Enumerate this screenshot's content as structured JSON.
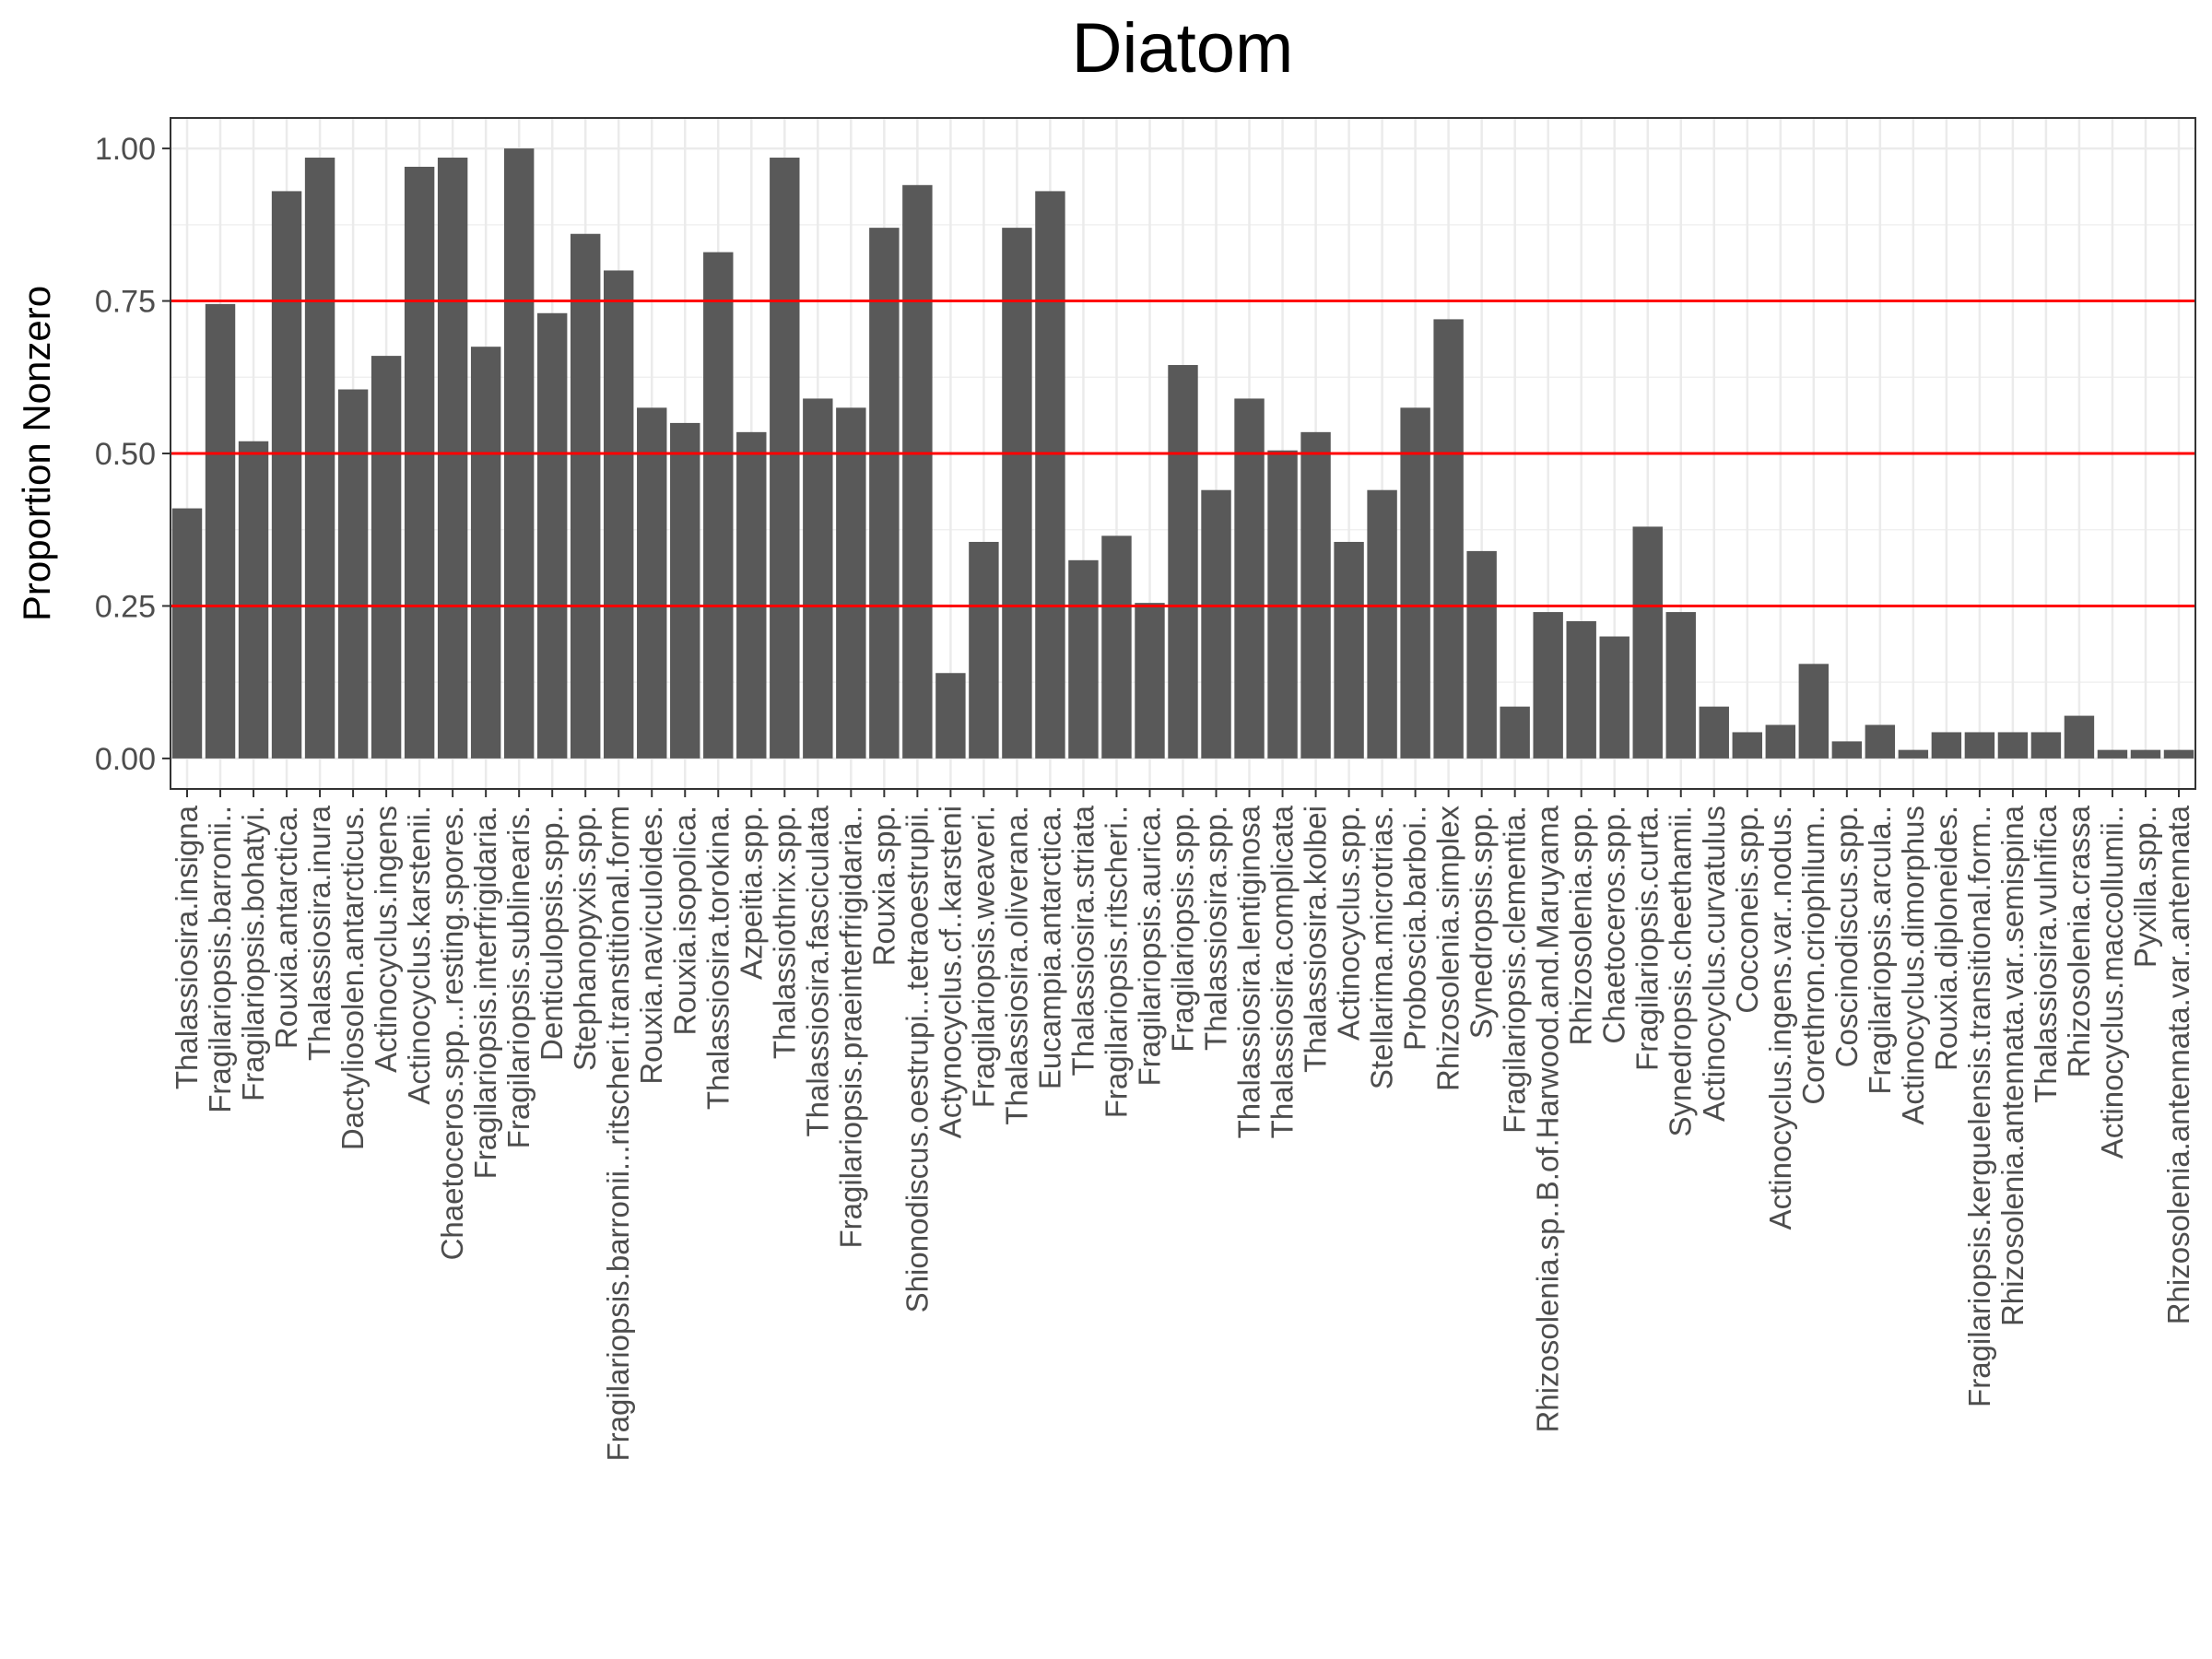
{
  "chart_data": {
    "type": "bar",
    "title": "Diatom",
    "xlabel": "",
    "ylabel": "Proportion Nonzero",
    "ylim": [
      -0.05,
      1.05
    ],
    "yticks": [
      0.0,
      0.25,
      0.5,
      0.75,
      1.0
    ],
    "ytick_labels": [
      "0.00",
      "0.25",
      "0.50",
      "0.75",
      "1.00"
    ],
    "hlines": [
      0.25,
      0.5,
      0.75
    ],
    "grid": true,
    "bar_color": "#595959",
    "hline_color": "#ff0000",
    "categories": [
      "Thalassiosira.insigna",
      "Fragilariopsis.barronii..",
      "Fragilariopsis.bohatyi.",
      "Rouxia.antarctica.",
      "Thalassiosira.inura",
      "Dactyliosolen.antarcticus.",
      "Actinocyclus.ingens",
      "Actinocyclus.karstenii.",
      "Chaetoceros.spp...resting.spores.",
      "Fragilariopsis.interfrigidaria.",
      "Fragilariopsis.sublinearis.",
      "Denticulopsis.spp..",
      "Stephanopyxis.spp.",
      "Fragilariopsis.barronii...ritscheri.transtitional.form",
      "Rouxia.naviculoides.",
      "Rouxia.isopolica.",
      "Thalassiosira.torokina.",
      "Azpeitia.spp.",
      "Thalassiothrix.spp.",
      "Thalassiosira.fasciculata",
      "Fragilariopsis.praeinterfrigidaria..",
      "Rouxia.spp.",
      "Shionodiscus.oestrupi...tetraoestrupii.",
      "Actynocyclus.cf..karsteni",
      "Fragilariopsis.weaveri.",
      "Thalassiosira.oliverana.",
      "Eucampia.antarctica.",
      "Thalassiosira.striata",
      "Fragilariopsis.ritscheri..",
      "Fragilariopsis.aurica.",
      "Fragilariopsis.spp.",
      "Thalassiosira.spp.",
      "Thalassiosira.lentiginosa",
      "Thalassiosira.complicata",
      "Thalassiosira.kolbei",
      "Actinocyclus.spp.",
      "Stellarima.microtrias.",
      "Proboscia.barboi..",
      "Rhizosolenia.simplex",
      "Synedropsis.spp.",
      "Fragilariopsis.clementia.",
      "Rhizosolenia.sp..B.of.Harwood.and.Maruyama",
      "Rhizosolenia.spp.",
      "Chaetoceros.spp.",
      "Fragilariopsis.curta.",
      "Synedropsis.cheethamii.",
      "Actinocyclus.curvatulus",
      "Cocconeis.spp.",
      "Actinocyclus.ingens.var..nodus.",
      "Corethron.criophilum..",
      "Coscinodiscus.spp.",
      "Fragilariopsis.arcula..",
      "Actinocyclus.dimorphus",
      "Rouxia.diploneides.",
      "Fragilariopsis.kerguelensis.transitional.form..",
      "Rhizosolenia.antennata.var..semispina",
      "Thalassiosira.vulnifica",
      "Rhizosolenia.crassa",
      "Actinocyclus.maccollumii..",
      "Pyxilla.spp..",
      "Rhizosolenia.antennata.var..antennata"
    ],
    "values": [
      0.41,
      0.745,
      0.52,
      0.93,
      0.985,
      0.605,
      0.66,
      0.97,
      0.985,
      0.675,
      1.0,
      0.73,
      0.86,
      0.8,
      0.575,
      0.55,
      0.83,
      0.535,
      0.985,
      0.59,
      0.575,
      0.87,
      0.94,
      0.14,
      0.355,
      0.87,
      0.93,
      0.325,
      0.365,
      0.255,
      0.645,
      0.44,
      0.59,
      0.505,
      0.535,
      0.355,
      0.44,
      0.575,
      0.72,
      0.34,
      0.085,
      0.24,
      0.225,
      0.2,
      0.38,
      0.24,
      0.085,
      0.043,
      0.055,
      0.155,
      0.028,
      0.055,
      0.014,
      0.043,
      0.043,
      0.043,
      0.043,
      0.07,
      0.014,
      0.014,
      0.014
    ]
  }
}
